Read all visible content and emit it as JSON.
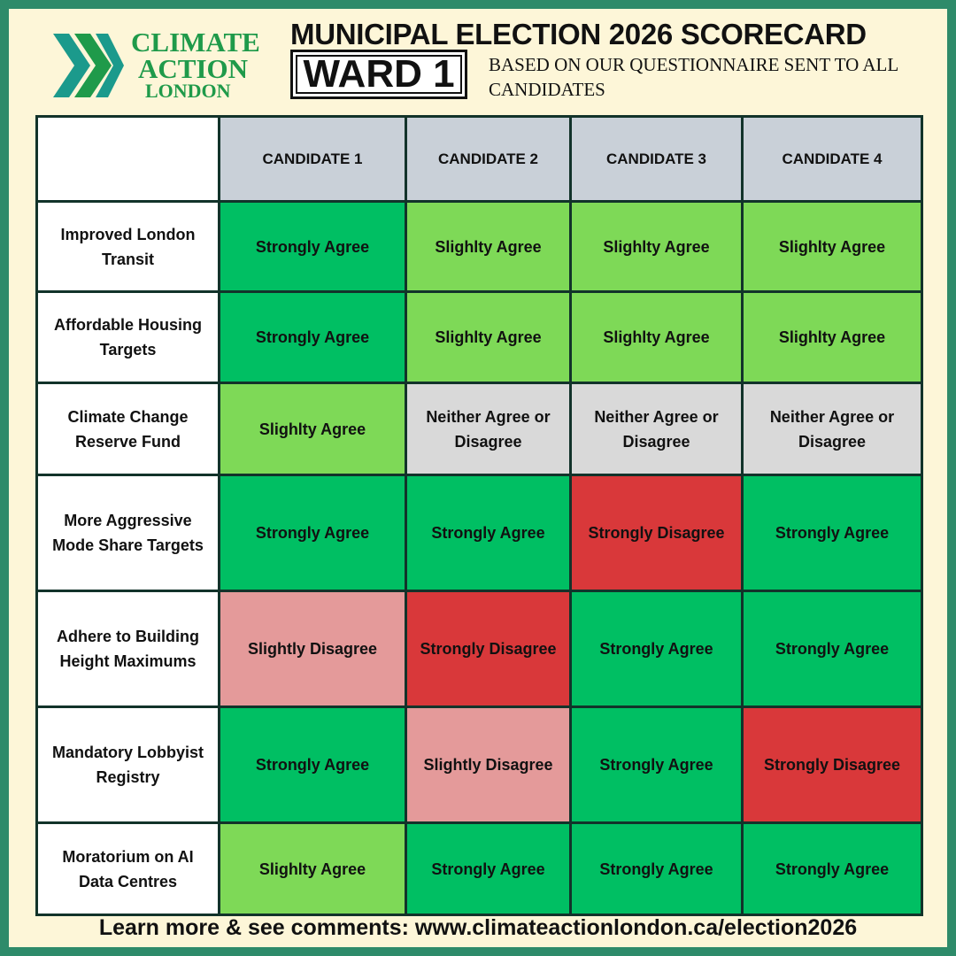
{
  "logo": {
    "line1": "CLIMATE",
    "line2": "ACTION",
    "line3": "LONDON"
  },
  "header": {
    "title": "MUNICIPAL ELECTION 2026 SCORECARD",
    "ward": "WARD 1",
    "subtitle": "BASED ON OUR QUESTIONNAIRE SENT TO ALL CANDIDATES"
  },
  "table": {
    "columns": [
      "CANDIDATE 1",
      "CANDIDATE 2",
      "CANDIDATE 3",
      "CANDIDATE 4"
    ],
    "rows": [
      {
        "label": "Improved London Transit",
        "cells": [
          {
            "text": "Strongly Agree",
            "color": "#00bf63"
          },
          {
            "text": "Slighlty Agree",
            "color": "#7ed957"
          },
          {
            "text": "Slighlty Agree",
            "color": "#7ed957"
          },
          {
            "text": "Slighlty Agree",
            "color": "#7ed957"
          }
        ]
      },
      {
        "label": "Affordable Housing Targets",
        "cells": [
          {
            "text": "Strongly Agree",
            "color": "#00bf63"
          },
          {
            "text": "Slighlty Agree",
            "color": "#7ed957"
          },
          {
            "text": "Slighlty Agree",
            "color": "#7ed957"
          },
          {
            "text": "Slighlty Agree",
            "color": "#7ed957"
          }
        ]
      },
      {
        "label": "Climate Change Reserve Fund",
        "cells": [
          {
            "text": "Slighlty Agree",
            "color": "#7ed957"
          },
          {
            "text": "Neither Agree or Disagree",
            "color": "#d9d9d9"
          },
          {
            "text": "Neither Agree or Disagree",
            "color": "#d9d9d9"
          },
          {
            "text": "Neither Agree or Disagree",
            "color": "#d9d9d9"
          }
        ]
      },
      {
        "label": "More Aggressive Mode Share Targets",
        "cells": [
          {
            "text": "Strongly Agree",
            "color": "#00bf63"
          },
          {
            "text": "Strongly Agree",
            "color": "#00bf63"
          },
          {
            "text": "Strongly Disagree",
            "color": "#d9383a"
          },
          {
            "text": "Strongly Agree",
            "color": "#00bf63"
          }
        ]
      },
      {
        "label": "Adhere to Building Height Maximums",
        "cells": [
          {
            "text": "Slightly Disagree",
            "color": "#e49a9a"
          },
          {
            "text": "Strongly Disagree",
            "color": "#d9383a"
          },
          {
            "text": "Strongly Agree",
            "color": "#00bf63"
          },
          {
            "text": "Strongly Agree",
            "color": "#00bf63"
          }
        ]
      },
      {
        "label": "Mandatory Lobbyist Registry",
        "cells": [
          {
            "text": "Strongly Agree",
            "color": "#00bf63"
          },
          {
            "text": "Slightly Disagree",
            "color": "#e49a9a"
          },
          {
            "text": "Strongly Agree",
            "color": "#00bf63"
          },
          {
            "text": "Strongly Disagree",
            "color": "#d9383a"
          }
        ]
      },
      {
        "label": "Moratorium on AI Data Centres",
        "cells": [
          {
            "text": "Slighlty Agree",
            "color": "#7ed957"
          },
          {
            "text": "Strongly Agree",
            "color": "#00bf63"
          },
          {
            "text": "Strongly Agree",
            "color": "#00bf63"
          },
          {
            "text": "Strongly Agree",
            "color": "#00bf63"
          }
        ]
      }
    ]
  },
  "footer": "Learn more & see comments: www.climateactionlondon.ca/election2026"
}
